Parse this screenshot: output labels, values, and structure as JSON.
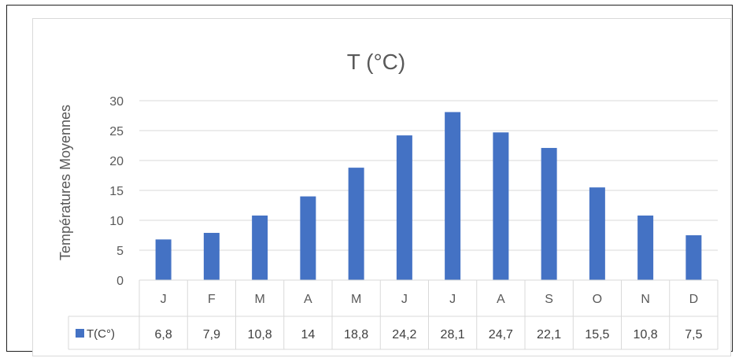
{
  "chart_data": {
    "type": "bar",
    "title": "T (°C)",
    "ylabel": "Températures Moyennes",
    "xlabel": "",
    "ylim": [
      0,
      30
    ],
    "yticks": [
      "0",
      "5",
      "10",
      "15",
      "20",
      "25",
      "30"
    ],
    "grid": true,
    "categories": [
      "J",
      "F",
      "M",
      "A",
      "M",
      "J",
      "J",
      "A",
      "S",
      "O",
      "N",
      "D"
    ],
    "series": [
      {
        "name": "T(C°)",
        "color": "#4472c4",
        "values": [
          6.8,
          7.9,
          10.8,
          14,
          18.8,
          24.2,
          28.1,
          24.7,
          22.1,
          15.5,
          10.8,
          7.5
        ],
        "labels": [
          "6,8",
          "7,9",
          "10,8",
          "14",
          "18,8",
          "24,2",
          "28,1",
          "24,7",
          "22,1",
          "15,5",
          "10,8",
          "7,5"
        ]
      }
    ],
    "legend_placement": "data-table-left"
  }
}
